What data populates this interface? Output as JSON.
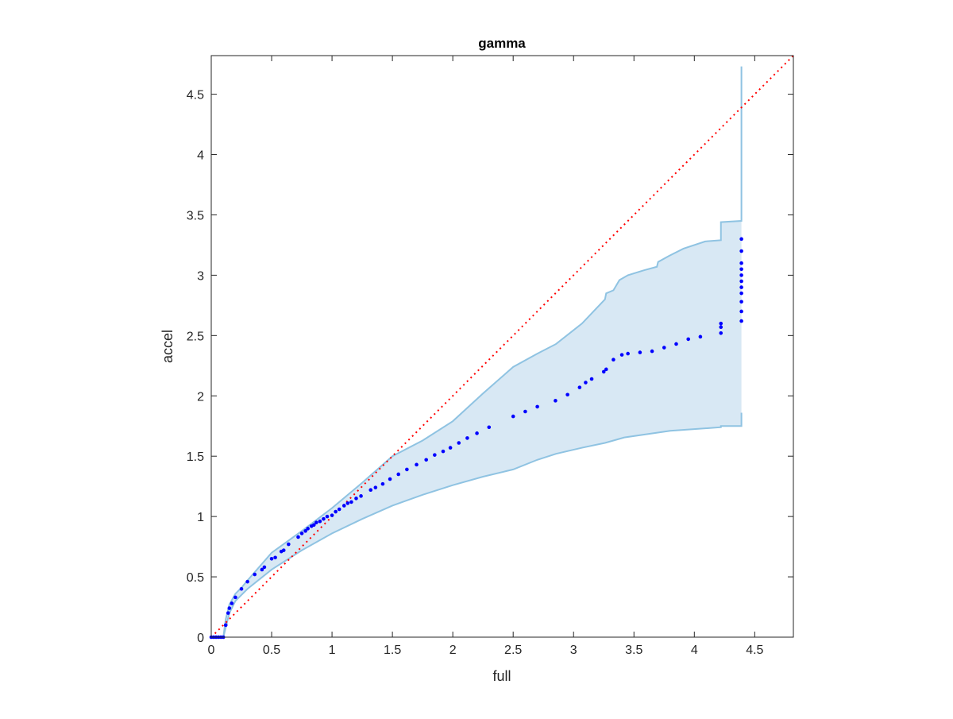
{
  "chart_data": {
    "type": "scatter",
    "title": "gamma",
    "xlabel": "full",
    "ylabel": "accel",
    "xlim": [
      0,
      4.82
    ],
    "ylim": [
      0,
      4.82
    ],
    "xticks": [
      0,
      0.5,
      1,
      1.5,
      2,
      2.5,
      3,
      3.5,
      4,
      4.5
    ],
    "yticks": [
      0,
      0.5,
      1,
      1.5,
      2,
      2.5,
      3,
      3.5,
      4,
      4.5
    ],
    "xtick_labels": [
      "0",
      "0.5",
      "1",
      "1.5",
      "2",
      "2.5",
      "3",
      "3.5",
      "4",
      "4.5"
    ],
    "ytick_labels": [
      "0",
      "0.5",
      "1",
      "1.5",
      "2",
      "2.5",
      "3",
      "3.5",
      "4",
      "4.5"
    ],
    "grid": false,
    "colors": {
      "points": "#0000ff",
      "band_fill": "#d8e8f4",
      "band_edge": "#8fc3e2",
      "reference": "#ff0000"
    },
    "reference_line": {
      "style": "dotted",
      "x": [
        0,
        4.82
      ],
      "y": [
        0,
        4.82
      ]
    },
    "band_upper": [
      [
        0.1,
        0
      ],
      [
        0.12,
        0.15
      ],
      [
        0.15,
        0.27
      ],
      [
        0.2,
        0.36
      ],
      [
        0.25,
        0.41
      ],
      [
        0.3,
        0.47
      ],
      [
        0.5,
        0.7
      ],
      [
        0.75,
        0.88
      ],
      [
        1,
        1.07
      ],
      [
        1.25,
        1.28
      ],
      [
        1.5,
        1.5
      ],
      [
        1.75,
        1.63
      ],
      [
        2,
        1.79
      ],
      [
        2.25,
        2.02
      ],
      [
        2.5,
        2.24
      ],
      [
        2.7,
        2.35
      ],
      [
        2.855,
        2.43
      ],
      [
        3.07,
        2.6
      ],
      [
        3.26,
        2.8
      ],
      [
        3.27,
        2.85
      ],
      [
        3.33,
        2.875
      ],
      [
        3.38,
        2.96
      ],
      [
        3.45,
        3.0
      ],
      [
        3.58,
        3.04
      ],
      [
        3.69,
        3.07
      ],
      [
        3.7,
        3.11
      ],
      [
        3.79,
        3.16
      ],
      [
        3.91,
        3.22
      ],
      [
        4.09,
        3.28
      ],
      [
        4.22,
        3.29
      ],
      [
        4.22,
        3.44
      ],
      [
        4.39,
        3.45
      ],
      [
        4.39,
        4.73
      ]
    ],
    "band_lower": [
      [
        0.1,
        0
      ],
      [
        0.15,
        0.2
      ],
      [
        0.2,
        0.3
      ],
      [
        0.3,
        0.4
      ],
      [
        0.5,
        0.56
      ],
      [
        0.75,
        0.72
      ],
      [
        1,
        0.86
      ],
      [
        1.25,
        0.98
      ],
      [
        1.5,
        1.09
      ],
      [
        1.75,
        1.18
      ],
      [
        2,
        1.26
      ],
      [
        2.25,
        1.33
      ],
      [
        2.5,
        1.39
      ],
      [
        2.7,
        1.47
      ],
      [
        2.855,
        1.52
      ],
      [
        3.07,
        1.57
      ],
      [
        3.26,
        1.61
      ],
      [
        3.42,
        1.655
      ],
      [
        3.8,
        1.71
      ],
      [
        4.22,
        1.74
      ],
      [
        4.22,
        1.75
      ],
      [
        4.39,
        1.75
      ],
      [
        4.39,
        1.86
      ]
    ],
    "points": {
      "x": [
        0,
        0.02,
        0.04,
        0.06,
        0.08,
        0.1,
        0.12,
        0.14,
        0.15,
        0.17,
        0.2,
        0.25,
        0.3,
        0.36,
        0.42,
        0.44,
        0.5,
        0.53,
        0.58,
        0.6,
        0.64,
        0.72,
        0.75,
        0.78,
        0.8,
        0.83,
        0.85,
        0.87,
        0.9,
        0.93,
        0.96,
        1.0,
        1.03,
        1.06,
        1.1,
        1.13,
        1.16,
        1.2,
        1.24,
        1.32,
        1.36,
        1.42,
        1.48,
        1.55,
        1.62,
        1.7,
        1.78,
        1.85,
        1.92,
        1.98,
        2.05,
        2.12,
        2.2,
        2.3,
        2.5,
        2.6,
        2.7,
        2.85,
        2.95,
        3.05,
        3.1,
        3.15,
        3.25,
        3.27,
        3.33,
        3.4,
        3.45,
        3.55,
        3.65,
        3.75,
        3.85,
        3.95,
        4.05,
        4.22,
        4.22,
        4.22,
        4.39,
        4.39,
        4.39,
        4.39,
        4.39,
        4.39,
        4.39,
        4.39,
        4.39,
        4.39,
        4.39
      ],
      "y": [
        0,
        0,
        0,
        0,
        0,
        0,
        0.1,
        0.2,
        0.24,
        0.28,
        0.33,
        0.4,
        0.46,
        0.52,
        0.56,
        0.58,
        0.65,
        0.66,
        0.71,
        0.72,
        0.77,
        0.83,
        0.86,
        0.88,
        0.9,
        0.92,
        0.93,
        0.95,
        0.96,
        0.98,
        1.0,
        1.01,
        1.04,
        1.06,
        1.09,
        1.11,
        1.12,
        1.15,
        1.17,
        1.22,
        1.24,
        1.27,
        1.31,
        1.35,
        1.39,
        1.43,
        1.47,
        1.51,
        1.54,
        1.57,
        1.61,
        1.65,
        1.69,
        1.74,
        1.83,
        1.87,
        1.91,
        1.96,
        2.01,
        2.07,
        2.11,
        2.14,
        2.2,
        2.22,
        2.3,
        2.34,
        2.35,
        2.36,
        2.37,
        2.4,
        2.43,
        2.47,
        2.49,
        2.52,
        2.57,
        2.6,
        2.62,
        2.7,
        2.78,
        2.85,
        2.9,
        2.95,
        3.0,
        3.05,
        3.1,
        3.2,
        3.3
      ]
    }
  }
}
